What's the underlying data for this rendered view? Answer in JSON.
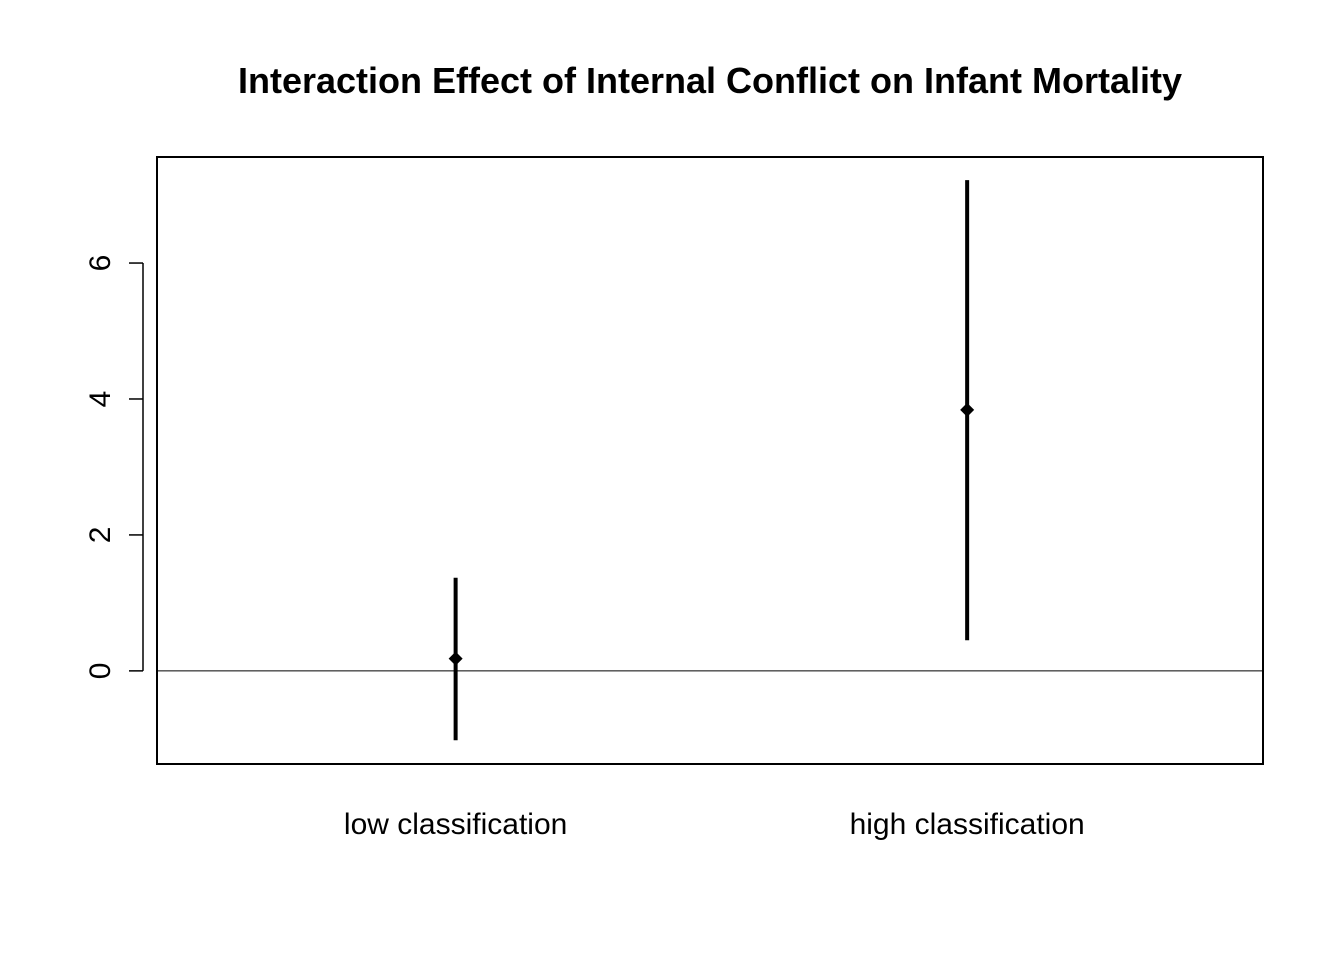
{
  "chart_data": {
    "type": "errorbar",
    "title": "Interaction Effect of Internal Conflict on Infant Mortality",
    "xlabel": "",
    "ylabel": "",
    "categories": [
      "low classification",
      "high classification"
    ],
    "estimates": [
      0.18,
      3.84
    ],
    "lower": [
      -1.02,
      0.45
    ],
    "upper": [
      1.37,
      7.22
    ],
    "ylim": [
      -1.37,
      7.56
    ],
    "yticks": [
      0,
      2,
      4,
      6
    ],
    "reference_line": 0,
    "grid": false,
    "legend": "none",
    "colors": {
      "line": "#000000",
      "background": "#ffffff"
    }
  }
}
